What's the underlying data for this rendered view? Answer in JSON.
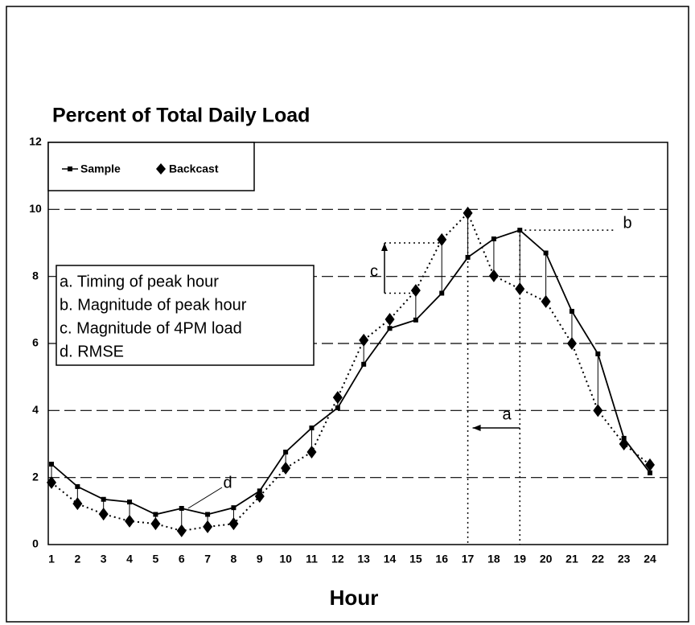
{
  "chart_data": {
    "type": "line",
    "title": "Percent of Total Daily Load",
    "x_label": "Hour",
    "categories": [
      "1",
      "2",
      "3",
      "4",
      "5",
      "6",
      "7",
      "8",
      "9",
      "10",
      "11",
      "12",
      "13",
      "14",
      "15",
      "16",
      "17",
      "18",
      "19",
      "20",
      "21",
      "22",
      "23",
      "24"
    ],
    "series": [
      {
        "name": "Sample",
        "color": "#000000",
        "values": [
          2.4,
          1.73,
          1.35,
          1.27,
          0.9,
          1.08,
          0.9,
          1.1,
          1.6,
          2.76,
          3.48,
          4.08,
          5.38,
          6.45,
          6.7,
          7.5,
          8.57,
          9.12,
          9.38,
          8.7,
          6.96,
          5.69,
          3.17,
          2.14
        ]
      },
      {
        "name": "Backcast",
        "color": "#000000",
        "values": [
          1.85,
          1.22,
          0.91,
          0.7,
          0.62,
          0.41,
          0.53,
          0.62,
          1.44,
          2.28,
          2.76,
          4.39,
          6.1,
          6.72,
          7.58,
          9.1,
          9.89,
          8.02,
          7.63,
          7.25,
          6.0,
          4.0,
          3.0,
          2.38
        ]
      }
    ],
    "ylim": [
      0,
      12
    ],
    "yticks": [
      0,
      2,
      4,
      6,
      8,
      10,
      12
    ],
    "grid": true,
    "legend": "upper left",
    "notes": [
      "a. Timing of peak hour",
      "b. Magnitude of peak hour",
      "c. Magnitude of 4PM load",
      "d. RMSE"
    ],
    "annotations": [
      "a",
      "b",
      "c",
      "d"
    ]
  }
}
